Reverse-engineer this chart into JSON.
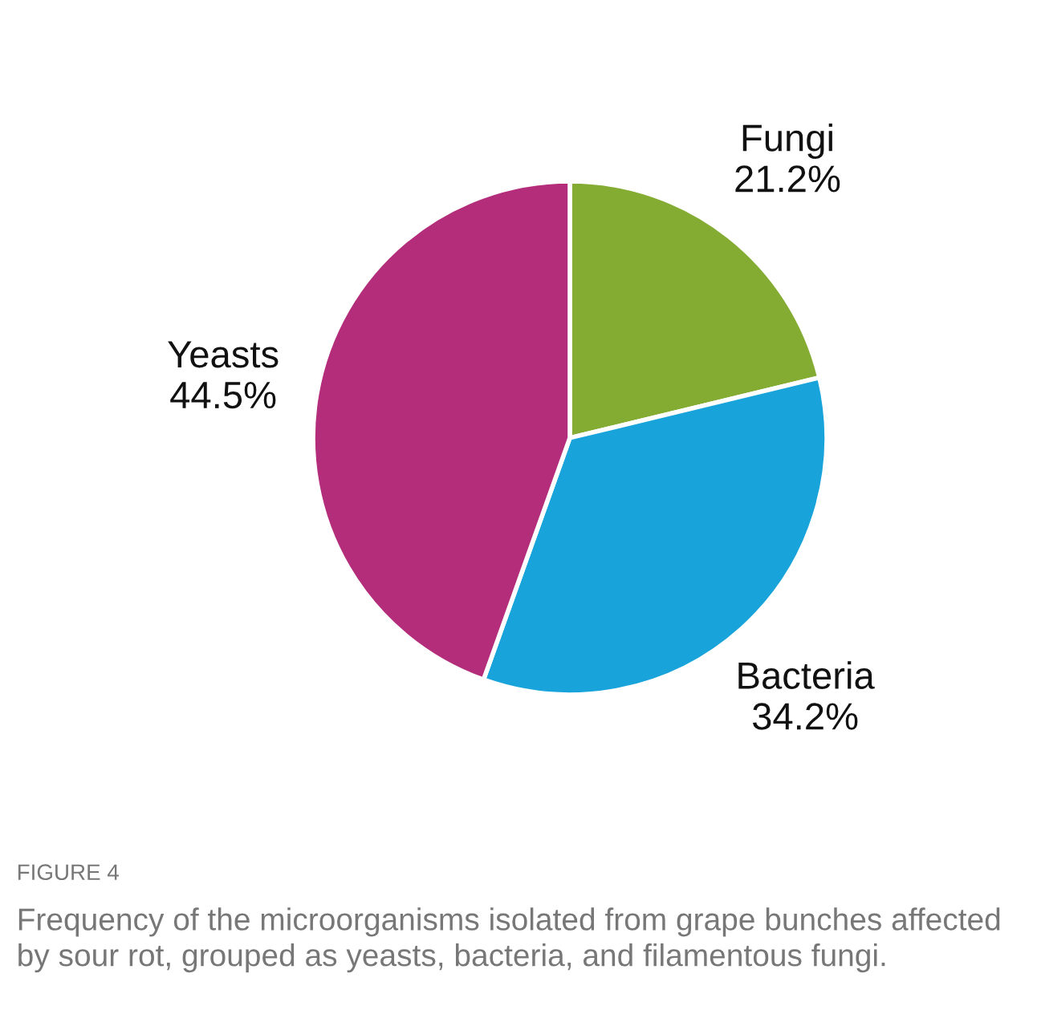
{
  "chart_data": {
    "type": "pie",
    "categories": [
      "Fungi",
      "Bacteria",
      "Yeasts"
    ],
    "values": [
      21.2,
      34.2,
      44.5
    ],
    "value_labels": [
      "21.2%",
      "34.2%",
      "44.5%"
    ],
    "colors": [
      "#84ac33",
      "#18a3da",
      "#b32d7a"
    ],
    "annotations": [
      "FIGURE 4",
      "Frequency of the microorganisms isolated from grape bunches affected by sour rot, grouped as yeasts, bacteria, and filamentous fungi."
    ]
  }
}
